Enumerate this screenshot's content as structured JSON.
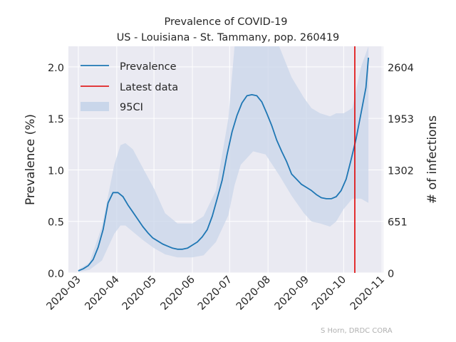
{
  "chart_data": {
    "type": "line",
    "title": "Prevalence of COVID-19",
    "subtitle": "US - Louisiana - St. Tammany, pop. 260419",
    "ylabel": "Prevalence (%)",
    "ylabel_right": "# of infections",
    "ylim": [
      0,
      2.2
    ],
    "xlim": [
      "2020-02-22",
      "2020-11-02"
    ],
    "x_ticks": [
      "2020-03",
      "2020-04",
      "2020-05",
      "2020-06",
      "2020-07",
      "2020-08",
      "2020-09",
      "2020-10",
      "2020-11"
    ],
    "y_ticks": [
      0.0,
      0.5,
      1.0,
      1.5,
      2.0
    ],
    "y_tick_labels": [
      "0.0",
      "0.5",
      "1.0",
      "1.5",
      "2.0"
    ],
    "y_right_ticks": [
      0,
      651,
      1302,
      1953,
      2604
    ],
    "grid": true,
    "legend_position": "top-left",
    "legend": [
      "Prevalence",
      "Latest data",
      "95CI"
    ],
    "latest_data_date": "2020-10-10",
    "colors": {
      "prevalence": "#1f77b4",
      "latest": "#e00000",
      "ci": "#c9d6ea",
      "background": "#eaeaf2",
      "grid": "#ffffff"
    },
    "series": [
      {
        "name": "Prevalence",
        "x": [
          "2020-03-01",
          "2020-03-05",
          "2020-03-09",
          "2020-03-13",
          "2020-03-17",
          "2020-03-21",
          "2020-03-25",
          "2020-03-29",
          "2020-04-02",
          "2020-04-06",
          "2020-04-10",
          "2020-04-14",
          "2020-04-18",
          "2020-04-22",
          "2020-04-26",
          "2020-04-30",
          "2020-05-04",
          "2020-05-08",
          "2020-05-12",
          "2020-05-16",
          "2020-05-20",
          "2020-05-24",
          "2020-05-28",
          "2020-06-01",
          "2020-06-05",
          "2020-06-09",
          "2020-06-13",
          "2020-06-17",
          "2020-06-21",
          "2020-06-25",
          "2020-06-29",
          "2020-07-03",
          "2020-07-07",
          "2020-07-11",
          "2020-07-15",
          "2020-07-19",
          "2020-07-23",
          "2020-07-27",
          "2020-07-31",
          "2020-08-04",
          "2020-08-08",
          "2020-08-12",
          "2020-08-16",
          "2020-08-20",
          "2020-08-24",
          "2020-08-28",
          "2020-09-01",
          "2020-09-05",
          "2020-09-09",
          "2020-09-13",
          "2020-09-17",
          "2020-09-21",
          "2020-09-25",
          "2020-09-29",
          "2020-10-03",
          "2020-10-07",
          "2020-10-11",
          "2020-10-15",
          "2020-10-19",
          "2020-10-21"
        ],
        "values": [
          0.02,
          0.04,
          0.07,
          0.13,
          0.25,
          0.42,
          0.68,
          0.78,
          0.78,
          0.74,
          0.66,
          0.59,
          0.52,
          0.45,
          0.39,
          0.34,
          0.31,
          0.28,
          0.26,
          0.24,
          0.23,
          0.23,
          0.24,
          0.27,
          0.3,
          0.35,
          0.42,
          0.55,
          0.72,
          0.9,
          1.15,
          1.37,
          1.53,
          1.65,
          1.72,
          1.73,
          1.72,
          1.66,
          1.55,
          1.43,
          1.29,
          1.18,
          1.08,
          0.96,
          0.91,
          0.86,
          0.83,
          0.8,
          0.76,
          0.73,
          0.72,
          0.72,
          0.74,
          0.8,
          0.91,
          1.1,
          1.3,
          1.55,
          1.8,
          2.09
        ]
      },
      {
        "name": "95CI",
        "x": [
          "2020-03-01",
          "2020-03-10",
          "2020-03-20",
          "2020-03-30",
          "2020-04-04",
          "2020-04-08",
          "2020-04-14",
          "2020-04-22",
          "2020-05-01",
          "2020-05-10",
          "2020-05-20",
          "2020-06-01",
          "2020-06-10",
          "2020-06-20",
          "2020-06-30",
          "2020-07-05",
          "2020-07-10",
          "2020-07-20",
          "2020-07-30",
          "2020-08-10",
          "2020-08-20",
          "2020-08-30",
          "2020-09-05",
          "2020-09-12",
          "2020-09-20",
          "2020-09-25",
          "2020-10-01",
          "2020-10-08",
          "2020-10-15",
          "2020-10-21"
        ],
        "lower": [
          0.01,
          0.03,
          0.12,
          0.38,
          0.46,
          0.46,
          0.4,
          0.32,
          0.24,
          0.18,
          0.15,
          0.15,
          0.17,
          0.3,
          0.56,
          0.85,
          1.05,
          1.18,
          1.15,
          0.95,
          0.75,
          0.58,
          0.5,
          0.48,
          0.45,
          0.5,
          0.62,
          0.72,
          0.72,
          0.68
        ],
        "upper": [
          0.03,
          0.1,
          0.45,
          1.05,
          1.24,
          1.26,
          1.2,
          1.02,
          0.82,
          0.58,
          0.48,
          0.48,
          0.55,
          0.8,
          1.5,
          2.2,
          2.2,
          2.2,
          2.2,
          2.2,
          1.9,
          1.7,
          1.6,
          1.55,
          1.52,
          1.55,
          1.55,
          1.6,
          2.0,
          2.2
        ]
      }
    ]
  },
  "credit": "S Horn, DRDC CORA"
}
